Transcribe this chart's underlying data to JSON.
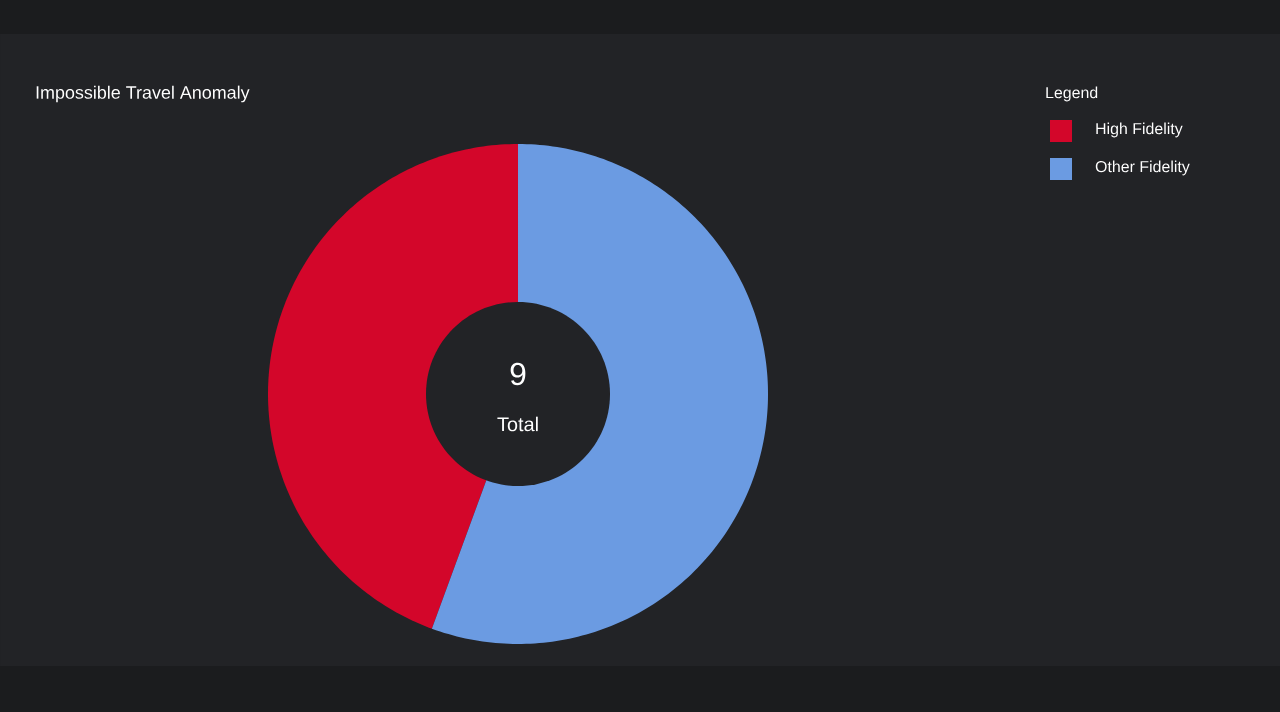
{
  "chart_data": {
    "type": "donut",
    "title": "Impossible Travel Anomaly",
    "categories": [
      "High Fidelity",
      "Other Fidelity"
    ],
    "values": [
      44.4,
      55.6
    ],
    "colors": [
      "#d3062a",
      "#6b9be2"
    ],
    "legend": "top right",
    "legend_title": "Legend",
    "annotations": [
      "9",
      "Total"
    ]
  }
}
